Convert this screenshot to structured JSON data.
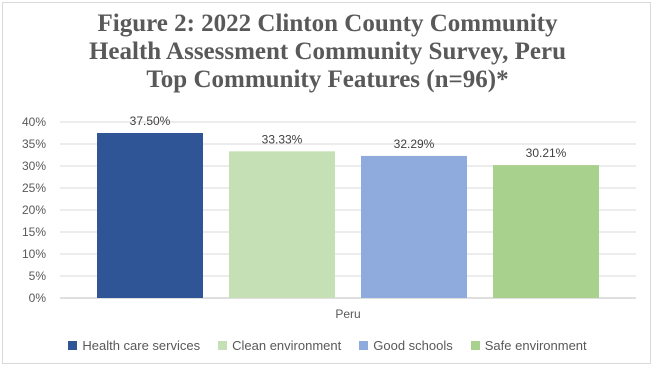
{
  "chart_data": {
    "type": "bar",
    "title_lines": [
      "Figure 2: 2022 Clinton County Community",
      "Health Assessment Community Survey, Peru",
      "Top Community Features (n=96)*"
    ],
    "categories": [
      "Peru"
    ],
    "series": [
      {
        "name": "Health care services",
        "values": [
          37.5
        ],
        "label": "37.50%",
        "color": "#2f5597"
      },
      {
        "name": "Clean environment",
        "values": [
          33.33
        ],
        "label": "33.33%",
        "color": "#c5e0b4"
      },
      {
        "name": "Good schools",
        "values": [
          32.29
        ],
        "label": "32.29%",
        "color": "#8faadc"
      },
      {
        "name": "Safe environment",
        "values": [
          30.21
        ],
        "label": "30.21%",
        "color": "#a9d18e"
      }
    ],
    "y_ticks": [
      "0%",
      "5%",
      "10%",
      "15%",
      "20%",
      "25%",
      "30%",
      "35%",
      "40%"
    ],
    "ylim": [
      0,
      40
    ],
    "grid": true,
    "legend_position": "bottom"
  }
}
